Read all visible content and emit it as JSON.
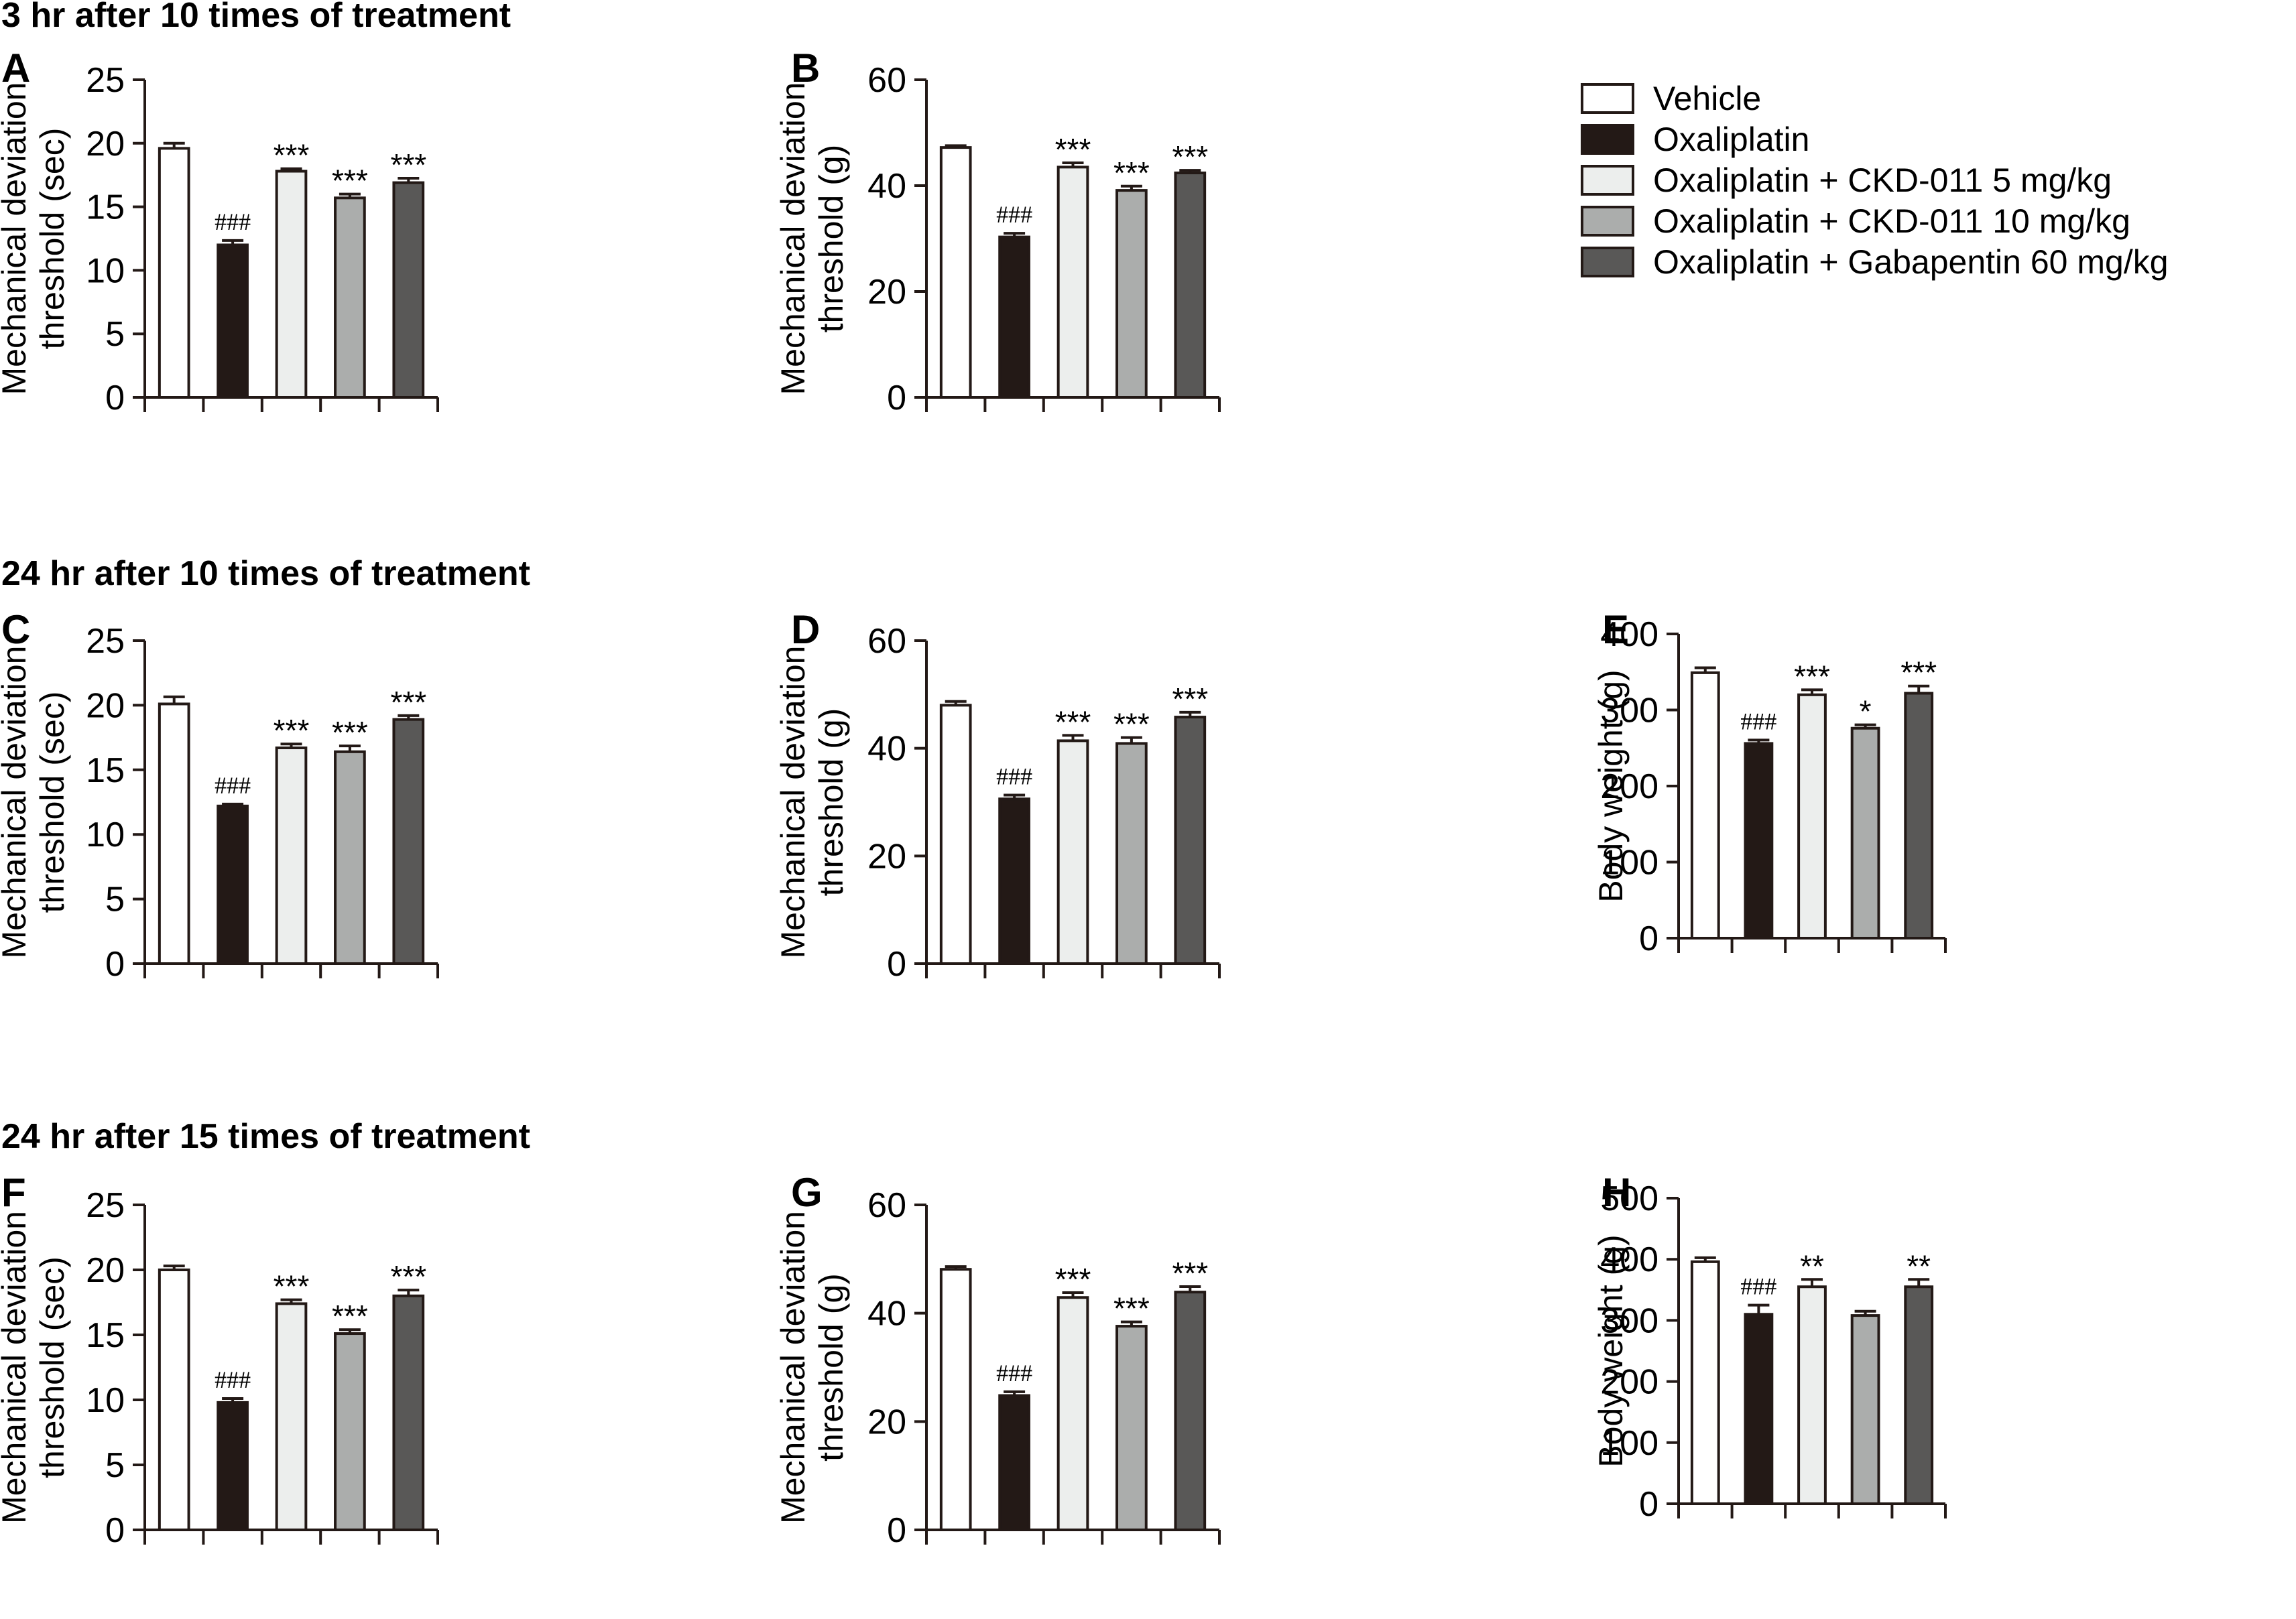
{
  "figure": {
    "sections": [
      {
        "title": "3 hr after 10 times of treatment"
      },
      {
        "title": "24 hr after 10 times of treatment"
      },
      {
        "title": "24 hr after 15 times of treatment"
      }
    ],
    "legend": [
      {
        "label": "Vehicle",
        "color": "#ffffff"
      },
      {
        "label": "Oxaliplatin",
        "color": "#231916"
      },
      {
        "label": "Oxaliplatin + CKD-011 5 mg/kg",
        "color": "#eceeed"
      },
      {
        "label": "Oxaliplatin + CKD-011 10 mg/kg",
        "color": "#abadac"
      },
      {
        "label": "Oxaliplatin + Gabapentin 60 mg/kg",
        "color": "#595857"
      }
    ],
    "outline_color": "#231916"
  },
  "chart_data": [
    {
      "panel": "A",
      "type": "bar",
      "section": "3 hr after 10 times of treatment",
      "categories": [
        "Vehicle",
        "Oxaliplatin",
        "Oxaliplatin + CKD-011 5 mg/kg",
        "Oxaliplatin + CKD-011 10 mg/kg",
        "Oxaliplatin + Gabapentin 60 mg/kg"
      ],
      "values": [
        19.6,
        12.0,
        17.8,
        15.7,
        16.9
      ],
      "errors": [
        0.4,
        0.35,
        0.2,
        0.3,
        0.35
      ],
      "annotations": [
        "",
        "###",
        "***",
        "***",
        "***"
      ],
      "ylabel": [
        "Mechanical deviation",
        "threshold (sec)"
      ],
      "ylim": [
        0,
        25
      ],
      "yticks": [
        0,
        5,
        10,
        15,
        20,
        25
      ],
      "xlabel": "",
      "grid": false
    },
    {
      "panel": "B",
      "type": "bar",
      "section": "3 hr after 10 times of treatment",
      "categories": [
        "Vehicle",
        "Oxaliplatin",
        "Oxaliplatin + CKD-011 5 mg/kg",
        "Oxaliplatin + CKD-011 10 mg/kg",
        "Oxaliplatin + Gabapentin 60 mg/kg"
      ],
      "values": [
        47.2,
        30.3,
        43.5,
        39.1,
        42.4
      ],
      "errors": [
        0.35,
        0.7,
        0.8,
        0.8,
        0.5
      ],
      "annotations": [
        "",
        "###",
        "***",
        "***",
        "***"
      ],
      "ylabel": [
        "Mechanical deviation",
        "threshold (g)"
      ],
      "ylim": [
        0,
        60
      ],
      "yticks": [
        0,
        20,
        40,
        60
      ],
      "xlabel": "",
      "grid": false
    },
    {
      "panel": "C",
      "type": "bar",
      "section": "24 hr after 10 times of treatment",
      "categories": [
        "Vehicle",
        "Oxaliplatin",
        "Oxaliplatin + CKD-011 5 mg/kg",
        "Oxaliplatin + CKD-011 10 mg/kg",
        "Oxaliplatin + Gabapentin 60 mg/kg"
      ],
      "values": [
        20.1,
        12.2,
        16.7,
        16.4,
        18.9
      ],
      "errors": [
        0.55,
        0.15,
        0.3,
        0.45,
        0.3
      ],
      "annotations": [
        "",
        "###",
        "***",
        "***",
        "***"
      ],
      "ylabel": [
        "Mechanical deviation",
        "threshold (sec)"
      ],
      "ylim": [
        0,
        25
      ],
      "yticks": [
        0,
        5,
        10,
        15,
        20,
        25
      ],
      "xlabel": "",
      "grid": false
    },
    {
      "panel": "D",
      "type": "bar",
      "section": "24 hr after 10 times of treatment",
      "categories": [
        "Vehicle",
        "Oxaliplatin",
        "Oxaliplatin + CKD-011 5 mg/kg",
        "Oxaliplatin + CKD-011 10 mg/kg",
        "Oxaliplatin + Gabapentin 60 mg/kg"
      ],
      "values": [
        48.0,
        30.6,
        41.4,
        40.9,
        45.8
      ],
      "errors": [
        0.7,
        0.7,
        1.0,
        1.1,
        0.9
      ],
      "annotations": [
        "",
        "###",
        "***",
        "***",
        "***"
      ],
      "ylabel": [
        "Mechanical deviation",
        "threshold (g)"
      ],
      "ylim": [
        0,
        60
      ],
      "yticks": [
        0,
        20,
        40,
        60
      ],
      "xlabel": "",
      "grid": false
    },
    {
      "panel": "E",
      "type": "bar",
      "section": "24 hr after 10 times of treatment",
      "categories": [
        "Vehicle",
        "Oxaliplatin",
        "Oxaliplatin + CKD-011 5 mg/kg",
        "Oxaliplatin + CKD-011 10 mg/kg",
        "Oxaliplatin + Gabapentin 60 mg/kg"
      ],
      "values": [
        349,
        256,
        320,
        276,
        322
      ],
      "errors": [
        6.5,
        4.5,
        6.5,
        4.5,
        9.5
      ],
      "annotations": [
        "",
        "###",
        "***",
        "*",
        "***"
      ],
      "ylabel": [
        "Body weight (g)"
      ],
      "ylim": [
        0,
        400
      ],
      "yticks": [
        0,
        100,
        200,
        300,
        400
      ],
      "xlabel": "",
      "grid": false
    },
    {
      "panel": "F",
      "type": "bar",
      "section": "24 hr after 15 times of treatment",
      "categories": [
        "Vehicle",
        "Oxaliplatin",
        "Oxaliplatin + CKD-011 5 mg/kg",
        "Oxaliplatin + CKD-011 10 mg/kg",
        "Oxaliplatin + Gabapentin 60 mg/kg"
      ],
      "values": [
        20.0,
        9.8,
        17.4,
        15.1,
        18.0
      ],
      "errors": [
        0.3,
        0.3,
        0.3,
        0.3,
        0.45
      ],
      "annotations": [
        "",
        "###",
        "***",
        "***",
        "***"
      ],
      "ylabel": [
        "Mechanical deviation",
        "threshold (sec)"
      ],
      "ylim": [
        0,
        25
      ],
      "yticks": [
        0,
        5,
        10,
        15,
        20,
        25
      ],
      "xlabel": "",
      "grid": false
    },
    {
      "panel": "G",
      "type": "bar",
      "section": "24 hr after 15 times of treatment",
      "categories": [
        "Vehicle",
        "Oxaliplatin",
        "Oxaliplatin + CKD-011 5 mg/kg",
        "Oxaliplatin + CKD-011 10 mg/kg",
        "Oxaliplatin + Gabapentin 60 mg/kg"
      ],
      "values": [
        48.1,
        24.8,
        42.9,
        37.6,
        43.9
      ],
      "errors": [
        0.5,
        0.7,
        0.9,
        0.8,
        1.0
      ],
      "annotations": [
        "",
        "###",
        "***",
        "***",
        "***"
      ],
      "ylabel": [
        "Mechanical deviation",
        "threshold (g)"
      ],
      "ylim": [
        0,
        60
      ],
      "yticks": [
        0,
        20,
        40,
        60
      ],
      "xlabel": "",
      "grid": false
    },
    {
      "panel": "H",
      "type": "bar",
      "section": "24 hr after 15 times of treatment",
      "categories": [
        "Vehicle",
        "Oxaliplatin",
        "Oxaliplatin + CKD-011 5 mg/kg",
        "Oxaliplatin + CKD-011 10 mg/kg",
        "Oxaliplatin + Gabapentin 60 mg/kg"
      ],
      "values": [
        396,
        310,
        355,
        308,
        355
      ],
      "errors": [
        6.5,
        15,
        12,
        7,
        12
      ],
      "annotations": [
        "",
        "###",
        "**",
        "",
        "**"
      ],
      "ylabel": [
        "Body weight (g)"
      ],
      "ylim": [
        0,
        500
      ],
      "yticks": [
        0,
        100,
        200,
        300,
        400,
        500
      ],
      "xlabel": "",
      "grid": false
    }
  ]
}
